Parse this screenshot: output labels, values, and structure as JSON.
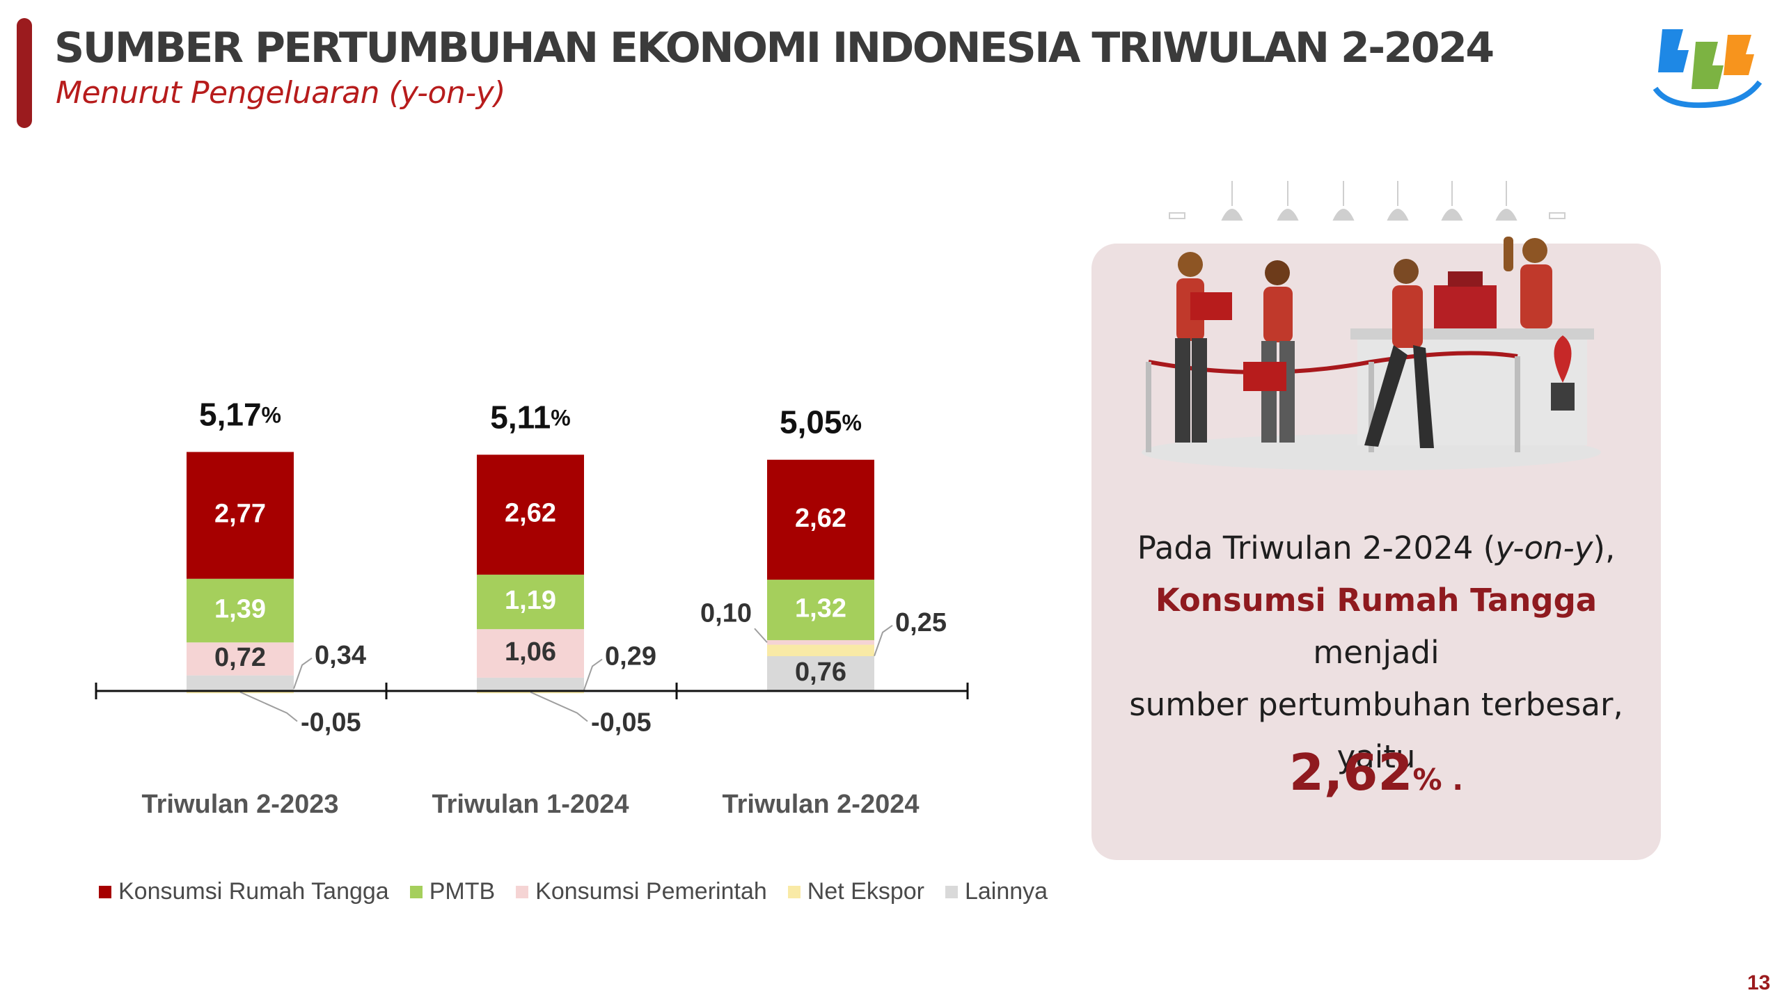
{
  "header": {
    "title": "SUMBER PERTUMBUHAN EKONOMI INDONESIA TRIWULAN 2-2024",
    "subtitle": "Menurut Pengeluaran (y-on-y)"
  },
  "logo": {
    "icon": "bps-logo",
    "colors": [
      "#1e88e5",
      "#f7941d",
      "#7cb342"
    ]
  },
  "colors": {
    "Konsumsi Rumah Tangga": "#a60000",
    "PMTB": "#a5cf5c",
    "Konsumsi Pemerintah": "#f5d4d4",
    "Net Ekspor": "#f9eaa6",
    "Lainnya": "#d9d9d9",
    "accent": "#8f1a1f"
  },
  "chart_data": {
    "type": "bar",
    "stacked": true,
    "categories": [
      "Triwulan 2-2023",
      "Triwulan 1-2024",
      "Triwulan 2-2024"
    ],
    "totals": [
      "5,17",
      "5,11",
      "5,05"
    ],
    "total_unit": "%",
    "series": [
      {
        "name": "Lainnya",
        "values": [
          0.34,
          0.29,
          0.76
        ],
        "labels": [
          "0,34",
          "0,29",
          "0,76"
        ]
      },
      {
        "name": "Net Ekspor",
        "values": [
          -0.05,
          -0.05,
          0.25
        ],
        "labels": [
          "-0,05",
          "-0,05",
          "0,25"
        ]
      },
      {
        "name": "Konsumsi Pemerintah",
        "values": [
          0.72,
          1.06,
          0.1
        ],
        "labels": [
          "0,72",
          "1,06",
          "0,10"
        ]
      },
      {
        "name": "PMTB",
        "values": [
          1.39,
          1.19,
          1.32
        ],
        "labels": [
          "1,39",
          "1,19",
          "1,32"
        ]
      },
      {
        "name": "Konsumsi Rumah Tangga",
        "values": [
          2.77,
          2.62,
          2.62
        ],
        "labels": [
          "2,77",
          "2,62",
          "2,62"
        ]
      }
    ],
    "legend": [
      "Konsumsi Rumah Tangga",
      "PMTB",
      "Konsumsi Pemerintah",
      "Net Ekspor",
      "Lainnya"
    ],
    "legend_position": "bottom",
    "ylim": [
      -0.3,
      5.3
    ],
    "grid": false
  },
  "panel": {
    "illustration": "shop-queue-illustration",
    "line1_prefix": "Pada Triwulan 2-2024 (",
    "line1_italic": "y-on-y",
    "line1_suffix": "),",
    "highlight": "Konsumsi Rumah Tangga",
    "line2_suffix": " menjadi",
    "line3": "sumber pertumbuhan terbesar,",
    "line4": "yaitu",
    "value": "2,62",
    "value_unit": "%",
    "value_suffix": " ."
  },
  "page_number": "13"
}
